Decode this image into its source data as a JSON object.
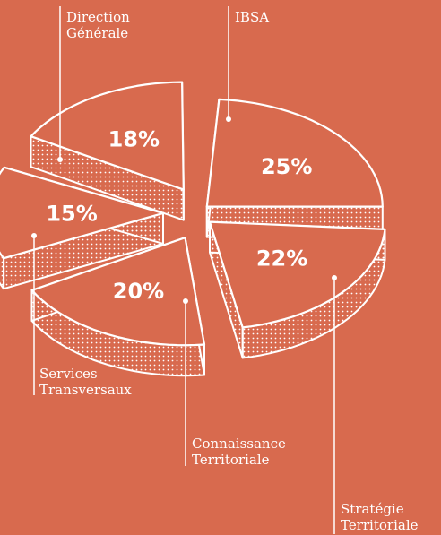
{
  "chart_data": {
    "type": "pie",
    "style": "exploded-3d",
    "slices": [
      {
        "label": [
          "Direction",
          "Générale"
        ],
        "value": 25,
        "value_label": "25%"
      },
      {
        "label": [
          "IBSA"
        ],
        "value": 22,
        "value_label": "22%"
      },
      {
        "label": [
          "Stratégie",
          "Territoriale"
        ],
        "value": 20,
        "value_label": "20%"
      },
      {
        "label": [
          "Connaissance",
          "Territoriale"
        ],
        "value": 15,
        "value_label": "15%"
      },
      {
        "label": [
          "Services",
          "Transversaux"
        ],
        "value": 18,
        "value_label": "18%"
      }
    ],
    "colors": {
      "background": "#d86a4e",
      "stroke": "#ffffff"
    }
  }
}
